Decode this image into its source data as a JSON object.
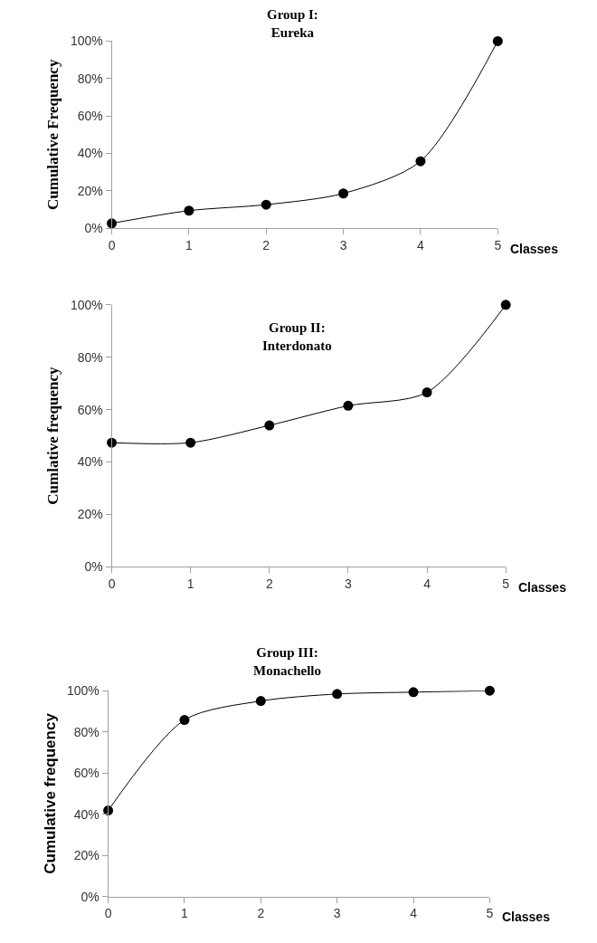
{
  "chart_data": [
    {
      "type": "line",
      "title": "Group I:\nEureka",
      "xlabel": "Classes",
      "ylabel": "Cumulative Frequency",
      "x": [
        0,
        1,
        2,
        3,
        4,
        5
      ],
      "series": [
        {
          "color": "#000000",
          "values": [
            2.6,
            9.4,
            12.6,
            18.6,
            35.8,
            100
          ]
        }
      ],
      "xlim": [
        0,
        5
      ],
      "xticks": [
        0,
        1,
        2,
        3,
        4,
        5
      ],
      "ylim": [
        0,
        100
      ],
      "yticks": [
        {
          "value": 0,
          "label": "0%"
        },
        {
          "value": 20,
          "label": "20%"
        },
        {
          "value": 40,
          "label": "40%"
        },
        {
          "value": 60,
          "label": "60%"
        },
        {
          "value": 80,
          "label": "80%"
        },
        {
          "value": 100,
          "label": "100%"
        }
      ],
      "marker": "circle",
      "line_style": "solid"
    },
    {
      "type": "line",
      "title": "Group II:\nInterdonato",
      "xlabel": "Classes",
      "ylabel": "Cumlative frequency",
      "x": [
        0,
        1,
        2,
        3,
        4,
        5
      ],
      "series": [
        {
          "color": "#000000",
          "values": [
            47.4,
            47.4,
            54,
            61.5,
            66.6,
            100
          ]
        }
      ],
      "xlim": [
        0,
        5
      ],
      "xticks": [
        0,
        1,
        2,
        3,
        4,
        5
      ],
      "ylim": [
        0,
        100
      ],
      "yticks": [
        {
          "value": 0,
          "label": "0%"
        },
        {
          "value": 20,
          "label": "20%"
        },
        {
          "value": 40,
          "label": "40%"
        },
        {
          "value": 60,
          "label": "60%"
        },
        {
          "value": 80,
          "label": "80%"
        },
        {
          "value": 100,
          "label": "100%"
        }
      ],
      "marker": "circle",
      "line_style": "solid"
    },
    {
      "type": "line",
      "title": "Group III:\nMonachello",
      "xlabel": "Classes",
      "ylabel": "Cumulative frequency",
      "x": [
        0,
        1,
        2,
        3,
        4,
        5
      ],
      "series": [
        {
          "color": "#000000",
          "values": [
            41.8,
            85.8,
            95,
            98.4,
            99.3,
            100
          ]
        }
      ],
      "xlim": [
        0,
        5
      ],
      "xticks": [
        0,
        1,
        2,
        3,
        4,
        5
      ],
      "ylim": [
        0,
        100
      ],
      "yticks": [
        {
          "value": 0,
          "label": "0%"
        },
        {
          "value": 20,
          "label": "20%"
        },
        {
          "value": 40,
          "label": "40%"
        },
        {
          "value": 60,
          "label": "60%"
        },
        {
          "value": 80,
          "label": "80%"
        },
        {
          "value": 100,
          "label": "100%"
        }
      ],
      "marker": "circle",
      "line_style": "solid"
    }
  ]
}
